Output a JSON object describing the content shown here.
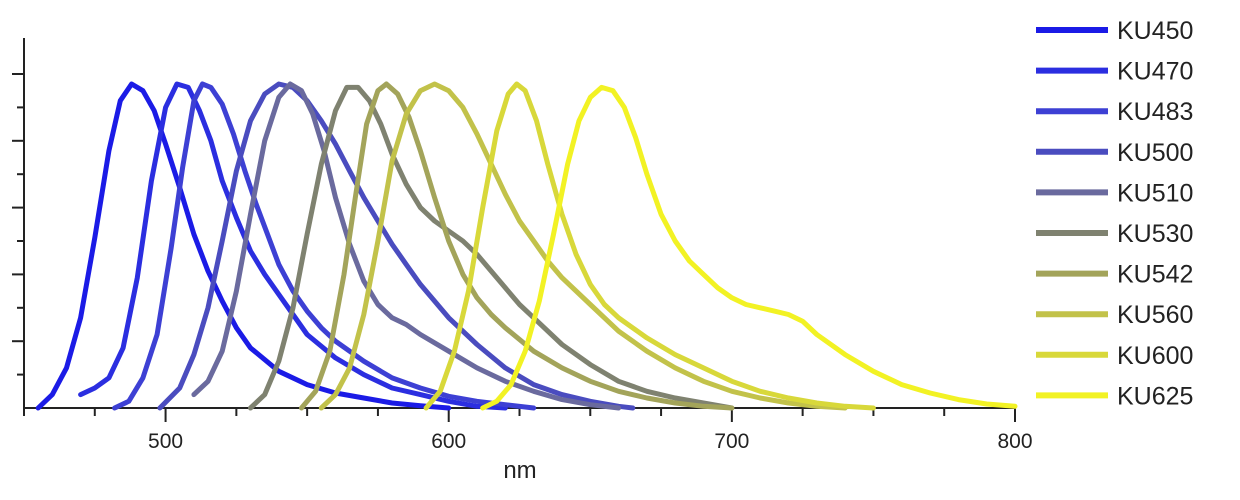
{
  "chart_data": {
    "type": "line",
    "title": "",
    "xlabel": "nm",
    "ylabel": "",
    "xlim": [
      450,
      800
    ],
    "ylim": [
      0,
      1.05
    ],
    "x_ticks_major": [
      500,
      600,
      700,
      800
    ],
    "x_ticks_minor_step": 25,
    "y_ticks_major_step": 0.2,
    "y_ticks_minor_step": 0.1,
    "y_tick_labels_shown": false,
    "grid": false,
    "legend_position": "right",
    "series": [
      {
        "name": "KU450",
        "color": "#1b1be6",
        "points": [
          [
            455,
            0
          ],
          [
            460,
            0.04
          ],
          [
            465,
            0.12
          ],
          [
            470,
            0.27
          ],
          [
            475,
            0.51
          ],
          [
            480,
            0.77
          ],
          [
            484,
            0.92
          ],
          [
            488,
            0.97
          ],
          [
            492,
            0.95
          ],
          [
            496,
            0.89
          ],
          [
            500,
            0.79
          ],
          [
            505,
            0.66
          ],
          [
            510,
            0.52
          ],
          [
            515,
            0.41
          ],
          [
            520,
            0.32
          ],
          [
            525,
            0.24
          ],
          [
            530,
            0.18
          ],
          [
            540,
            0.11
          ],
          [
            550,
            0.07
          ],
          [
            560,
            0.045
          ],
          [
            570,
            0.03
          ],
          [
            580,
            0.015
          ],
          [
            590,
            0.007
          ],
          [
            600,
            0
          ]
        ]
      },
      {
        "name": "KU470",
        "color": "#2b2ee0",
        "points": [
          [
            470,
            0.04
          ],
          [
            475,
            0.06
          ],
          [
            480,
            0.09
          ],
          [
            485,
            0.18
          ],
          [
            490,
            0.39
          ],
          [
            495,
            0.68
          ],
          [
            500,
            0.9
          ],
          [
            504,
            0.97
          ],
          [
            508,
            0.96
          ],
          [
            512,
            0.89
          ],
          [
            516,
            0.8
          ],
          [
            520,
            0.68
          ],
          [
            525,
            0.57
          ],
          [
            530,
            0.47
          ],
          [
            535,
            0.4
          ],
          [
            540,
            0.34
          ],
          [
            545,
            0.28
          ],
          [
            550,
            0.22
          ],
          [
            560,
            0.15
          ],
          [
            570,
            0.1
          ],
          [
            580,
            0.06
          ],
          [
            590,
            0.04
          ],
          [
            600,
            0.02
          ],
          [
            610,
            0.005
          ],
          [
            620,
            0
          ]
        ]
      },
      {
        "name": "KU483",
        "color": "#3d40d4",
        "points": [
          [
            482,
            0
          ],
          [
            487,
            0.02
          ],
          [
            492,
            0.09
          ],
          [
            497,
            0.22
          ],
          [
            502,
            0.48
          ],
          [
            506,
            0.72
          ],
          [
            510,
            0.92
          ],
          [
            513,
            0.97
          ],
          [
            516,
            0.96
          ],
          [
            520,
            0.91
          ],
          [
            524,
            0.82
          ],
          [
            528,
            0.71
          ],
          [
            532,
            0.61
          ],
          [
            536,
            0.52
          ],
          [
            540,
            0.43
          ],
          [
            545,
            0.35
          ],
          [
            550,
            0.29
          ],
          [
            555,
            0.24
          ],
          [
            560,
            0.2
          ],
          [
            570,
            0.14
          ],
          [
            580,
            0.09
          ],
          [
            590,
            0.06
          ],
          [
            600,
            0.035
          ],
          [
            610,
            0.02
          ],
          [
            620,
            0.01
          ],
          [
            630,
            0
          ]
        ]
      },
      {
        "name": "KU500",
        "color": "#4a4cbf",
        "points": [
          [
            498,
            0
          ],
          [
            505,
            0.06
          ],
          [
            510,
            0.16
          ],
          [
            515,
            0.3
          ],
          [
            520,
            0.5
          ],
          [
            525,
            0.71
          ],
          [
            530,
            0.86
          ],
          [
            535,
            0.94
          ],
          [
            540,
            0.97
          ],
          [
            545,
            0.96
          ],
          [
            550,
            0.92
          ],
          [
            555,
            0.86
          ],
          [
            560,
            0.79
          ],
          [
            565,
            0.71
          ],
          [
            570,
            0.63
          ],
          [
            575,
            0.56
          ],
          [
            580,
            0.49
          ],
          [
            585,
            0.43
          ],
          [
            590,
            0.37
          ],
          [
            600,
            0.27
          ],
          [
            610,
            0.19
          ],
          [
            620,
            0.12
          ],
          [
            630,
            0.07
          ],
          [
            640,
            0.04
          ],
          [
            650,
            0.02
          ],
          [
            660,
            0.005
          ],
          [
            665,
            0
          ]
        ]
      },
      {
        "name": "KU510",
        "color": "#6a6a9e",
        "points": [
          [
            510,
            0.04
          ],
          [
            515,
            0.08
          ],
          [
            520,
            0.17
          ],
          [
            525,
            0.35
          ],
          [
            530,
            0.58
          ],
          [
            535,
            0.8
          ],
          [
            540,
            0.93
          ],
          [
            544,
            0.97
          ],
          [
            548,
            0.95
          ],
          [
            552,
            0.88
          ],
          [
            556,
            0.77
          ],
          [
            560,
            0.63
          ],
          [
            565,
            0.49
          ],
          [
            570,
            0.38
          ],
          [
            575,
            0.31
          ],
          [
            580,
            0.27
          ],
          [
            585,
            0.25
          ],
          [
            590,
            0.22
          ],
          [
            600,
            0.17
          ],
          [
            610,
            0.12
          ],
          [
            620,
            0.08
          ],
          [
            630,
            0.05
          ],
          [
            640,
            0.025
          ],
          [
            650,
            0.01
          ],
          [
            660,
            0
          ]
        ]
      },
      {
        "name": "KU530",
        "color": "#7f8270",
        "points": [
          [
            530,
            0
          ],
          [
            535,
            0.04
          ],
          [
            540,
            0.14
          ],
          [
            545,
            0.3
          ],
          [
            550,
            0.52
          ],
          [
            555,
            0.73
          ],
          [
            560,
            0.89
          ],
          [
            564,
            0.96
          ],
          [
            568,
            0.96
          ],
          [
            572,
            0.92
          ],
          [
            576,
            0.85
          ],
          [
            580,
            0.76
          ],
          [
            585,
            0.67
          ],
          [
            590,
            0.6
          ],
          [
            595,
            0.56
          ],
          [
            600,
            0.53
          ],
          [
            605,
            0.5
          ],
          [
            610,
            0.46
          ],
          [
            615,
            0.41
          ],
          [
            620,
            0.36
          ],
          [
            625,
            0.31
          ],
          [
            630,
            0.27
          ],
          [
            640,
            0.19
          ],
          [
            650,
            0.13
          ],
          [
            660,
            0.08
          ],
          [
            670,
            0.05
          ],
          [
            680,
            0.03
          ],
          [
            690,
            0.015
          ],
          [
            700,
            0
          ]
        ]
      },
      {
        "name": "KU542",
        "color": "#a3a45a",
        "points": [
          [
            548,
            0
          ],
          [
            553,
            0.05
          ],
          [
            558,
            0.17
          ],
          [
            563,
            0.4
          ],
          [
            567,
            0.63
          ],
          [
            571,
            0.85
          ],
          [
            575,
            0.95
          ],
          [
            578,
            0.97
          ],
          [
            582,
            0.94
          ],
          [
            586,
            0.87
          ],
          [
            590,
            0.77
          ],
          [
            595,
            0.63
          ],
          [
            600,
            0.5
          ],
          [
            605,
            0.4
          ],
          [
            610,
            0.33
          ],
          [
            615,
            0.28
          ],
          [
            620,
            0.24
          ],
          [
            630,
            0.17
          ],
          [
            640,
            0.12
          ],
          [
            650,
            0.08
          ],
          [
            660,
            0.05
          ],
          [
            670,
            0.03
          ],
          [
            680,
            0.015
          ],
          [
            690,
            0.005
          ],
          [
            700,
            0
          ]
        ]
      },
      {
        "name": "KU560",
        "color": "#c2c24a",
        "points": [
          [
            555,
            0
          ],
          [
            560,
            0.04
          ],
          [
            565,
            0.12
          ],
          [
            570,
            0.28
          ],
          [
            575,
            0.5
          ],
          [
            580,
            0.74
          ],
          [
            585,
            0.88
          ],
          [
            590,
            0.95
          ],
          [
            595,
            0.97
          ],
          [
            600,
            0.95
          ],
          [
            605,
            0.9
          ],
          [
            610,
            0.82
          ],
          [
            615,
            0.73
          ],
          [
            620,
            0.64
          ],
          [
            625,
            0.56
          ],
          [
            630,
            0.5
          ],
          [
            635,
            0.44
          ],
          [
            640,
            0.39
          ],
          [
            650,
            0.31
          ],
          [
            660,
            0.23
          ],
          [
            670,
            0.17
          ],
          [
            680,
            0.12
          ],
          [
            690,
            0.08
          ],
          [
            700,
            0.05
          ],
          [
            710,
            0.03
          ],
          [
            720,
            0.015
          ],
          [
            730,
            0.005
          ],
          [
            740,
            0
          ]
        ]
      },
      {
        "name": "KU600",
        "color": "#d8d83a",
        "points": [
          [
            592,
            0
          ],
          [
            597,
            0.05
          ],
          [
            602,
            0.17
          ],
          [
            607,
            0.35
          ],
          [
            612,
            0.6
          ],
          [
            617,
            0.83
          ],
          [
            621,
            0.94
          ],
          [
            624,
            0.97
          ],
          [
            627,
            0.95
          ],
          [
            631,
            0.86
          ],
          [
            635,
            0.73
          ],
          [
            640,
            0.58
          ],
          [
            645,
            0.46
          ],
          [
            650,
            0.37
          ],
          [
            655,
            0.31
          ],
          [
            660,
            0.27
          ],
          [
            670,
            0.21
          ],
          [
            680,
            0.16
          ],
          [
            690,
            0.12
          ],
          [
            700,
            0.08
          ],
          [
            710,
            0.05
          ],
          [
            720,
            0.03
          ],
          [
            730,
            0.015
          ],
          [
            740,
            0.005
          ],
          [
            750,
            0
          ]
        ]
      },
      {
        "name": "KU625",
        "color": "#f2f224",
        "points": [
          [
            612,
            0
          ],
          [
            617,
            0.02
          ],
          [
            622,
            0.07
          ],
          [
            627,
            0.17
          ],
          [
            632,
            0.32
          ],
          [
            637,
            0.52
          ],
          [
            642,
            0.73
          ],
          [
            646,
            0.86
          ],
          [
            650,
            0.93
          ],
          [
            654,
            0.96
          ],
          [
            658,
            0.95
          ],
          [
            662,
            0.9
          ],
          [
            666,
            0.81
          ],
          [
            670,
            0.7
          ],
          [
            675,
            0.58
          ],
          [
            680,
            0.5
          ],
          [
            685,
            0.44
          ],
          [
            690,
            0.4
          ],
          [
            695,
            0.36
          ],
          [
            700,
            0.33
          ],
          [
            705,
            0.31
          ],
          [
            710,
            0.3
          ],
          [
            715,
            0.29
          ],
          [
            720,
            0.28
          ],
          [
            725,
            0.26
          ],
          [
            730,
            0.22
          ],
          [
            740,
            0.16
          ],
          [
            750,
            0.11
          ],
          [
            760,
            0.07
          ],
          [
            770,
            0.045
          ],
          [
            780,
            0.025
          ],
          [
            790,
            0.012
          ],
          [
            800,
            0.005
          ]
        ]
      }
    ]
  }
}
